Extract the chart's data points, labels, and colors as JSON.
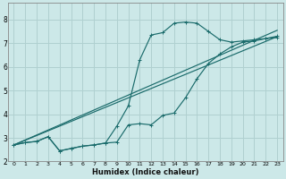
{
  "xlabel": "Humidex (Indice chaleur)",
  "bg_color": "#cce8e8",
  "grid_color": "#b0d0d0",
  "line_color": "#1a6b6b",
  "xlim": [
    -0.5,
    23.5
  ],
  "ylim": [
    2.0,
    8.7
  ],
  "yticks": [
    2,
    3,
    4,
    5,
    6,
    7,
    8
  ],
  "xticks": [
    0,
    1,
    2,
    3,
    4,
    5,
    6,
    7,
    8,
    9,
    10,
    11,
    12,
    13,
    14,
    15,
    16,
    17,
    18,
    19,
    20,
    21,
    22,
    23
  ],
  "curve_zigzag_x": [
    0,
    1,
    2,
    3,
    4,
    5,
    6,
    7,
    8,
    9,
    10,
    11,
    12,
    13,
    14,
    15,
    16,
    17,
    18,
    19,
    20,
    21,
    22,
    23
  ],
  "curve_zigzag_y": [
    2.7,
    2.8,
    2.85,
    3.05,
    2.45,
    2.55,
    2.65,
    2.7,
    2.78,
    2.82,
    3.55,
    3.6,
    3.55,
    3.95,
    4.05,
    4.7,
    5.5,
    6.15,
    6.55,
    6.85,
    7.05,
    7.1,
    7.2,
    7.25
  ],
  "curve_peak_x": [
    0,
    1,
    2,
    3,
    4,
    5,
    6,
    7,
    8,
    9,
    10,
    11,
    12,
    13,
    14,
    15,
    16,
    17,
    18,
    19,
    20,
    21,
    22,
    23
  ],
  "curve_peak_y": [
    2.7,
    2.8,
    2.85,
    3.05,
    2.45,
    2.55,
    2.65,
    2.7,
    2.78,
    3.5,
    4.35,
    6.3,
    7.35,
    7.45,
    7.85,
    7.9,
    7.85,
    7.5,
    7.15,
    7.05,
    7.1,
    7.15,
    7.2,
    7.3
  ],
  "curve_line1_x": [
    0,
    23
  ],
  "curve_line1_y": [
    2.7,
    7.28
  ],
  "curve_line2_x": [
    0,
    23
  ],
  "curve_line2_y": [
    2.7,
    7.55
  ]
}
